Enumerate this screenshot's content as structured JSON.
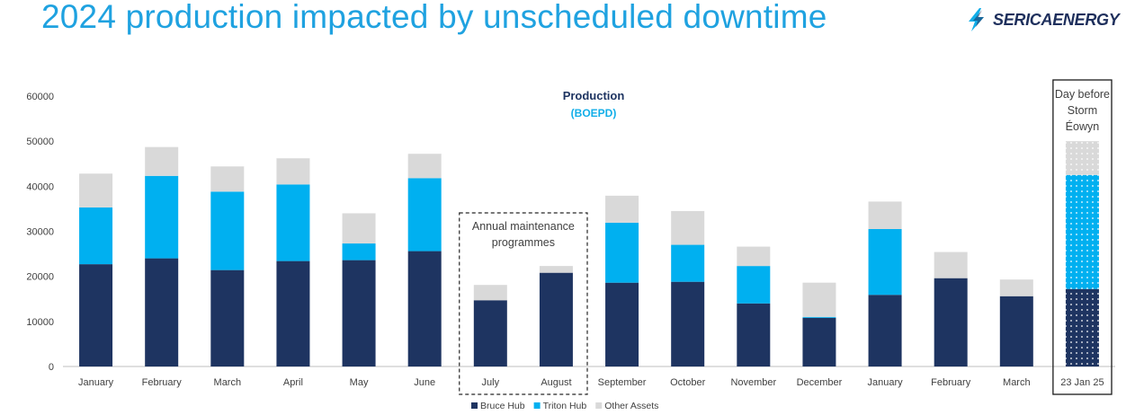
{
  "header": {
    "title": "2024 production impacted by unscheduled downtime",
    "logo_text": "SERICAENERGY"
  },
  "colors": {
    "bruce": "#1e3461",
    "triton": "#00b0f0",
    "other": "#d9d9d9",
    "title": "#1fa2e0"
  },
  "chart_data": {
    "type": "bar",
    "stacked": true,
    "title": "Production",
    "subtitle": "(BOEPD)",
    "xlabel": "",
    "ylabel": "",
    "ylim": [
      0,
      60000
    ],
    "yticks": [
      0,
      10000,
      20000,
      30000,
      40000,
      50000,
      60000
    ],
    "categories": [
      "January",
      "February",
      "March",
      "April",
      "May",
      "June",
      "July",
      "August",
      "September",
      "October",
      "November",
      "December",
      "January",
      "February",
      "March",
      "23 Jan 25"
    ],
    "series": [
      {
        "name": "Bruce Hub",
        "color": "#1e3461",
        "values": [
          22700,
          24000,
          21400,
          23400,
          23600,
          25600,
          14700,
          20800,
          18600,
          18800,
          14000,
          10800,
          15900,
          19600,
          15600,
          17200
        ]
      },
      {
        "name": "Triton Hub",
        "color": "#00b0f0",
        "values": [
          12600,
          18300,
          17400,
          17000,
          3700,
          16200,
          0,
          0,
          13300,
          8200,
          8300,
          200,
          14600,
          0,
          0,
          25300
        ]
      },
      {
        "name": "Other Assets",
        "color": "#d9d9d9",
        "values": [
          7500,
          6400,
          5600,
          5800,
          6700,
          5400,
          3400,
          1500,
          6000,
          7500,
          4300,
          7600,
          6100,
          5800,
          3700,
          7500
        ]
      }
    ],
    "annotations": [
      {
        "text_lines": [
          "Annual maintenance",
          "programmes"
        ],
        "categories": [
          "July",
          "August"
        ]
      },
      {
        "text_lines": [
          "Day before",
          "Storm",
          "Éowyn"
        ],
        "categories": [
          "23 Jan 25"
        ]
      }
    ],
    "legend": [
      "Bruce Hub",
      "Triton Hub",
      "Other Assets"
    ],
    "legend_position": "bottom"
  }
}
